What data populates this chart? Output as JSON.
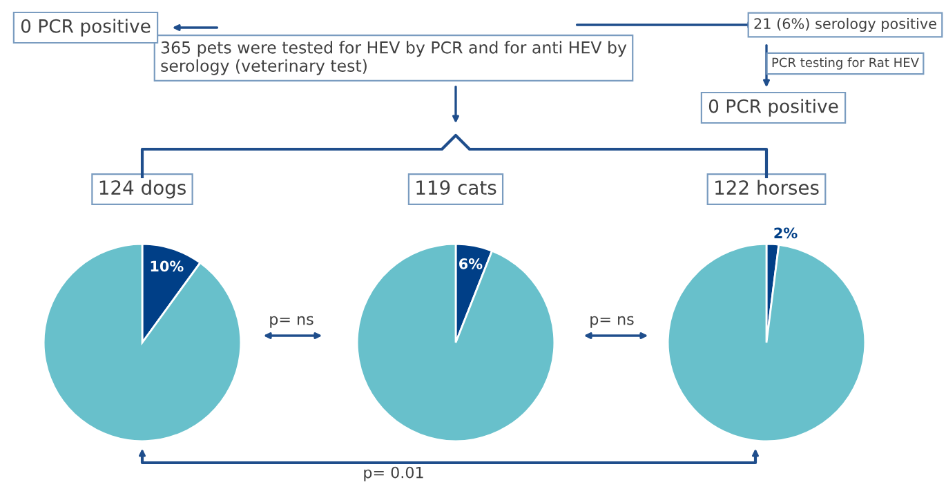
{
  "chart_data": [
    {
      "type": "pie",
      "title": "124 dogs",
      "categories": [
        null,
        null
      ],
      "values": [
        10,
        90
      ],
      "colors": [
        "#003f87",
        "#68c0cb"
      ],
      "value_labels": [
        "10%",
        null
      ],
      "annotations": [
        "365 pets were tested for HEV by PCR and for anti HEV by serology (veterinary test)",
        "0 PCR positive",
        "21 (6%) serology positive",
        "PCR testing for Rat HEV",
        "0 PCR positive",
        "p= ns",
        "p= ns",
        "p= 0.01"
      ]
    },
    {
      "type": "pie",
      "title": "119 cats",
      "categories": [
        null,
        null
      ],
      "values": [
        6,
        94
      ],
      "colors": [
        "#003f87",
        "#68c0cb"
      ],
      "value_labels": [
        "6%",
        null
      ]
    },
    {
      "type": "pie",
      "title": "122 horses",
      "categories": [
        null,
        null
      ],
      "values": [
        2,
        98
      ],
      "colors": [
        "#003f87",
        "#68c0cb"
      ],
      "value_labels": [
        "2%",
        null
      ]
    }
  ]
}
